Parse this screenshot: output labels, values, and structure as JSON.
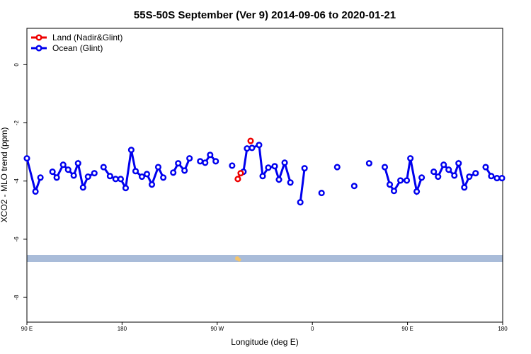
{
  "chart_data": {
    "type": "line",
    "title": "55S-50S September (Ver 9)   2014-09-06 to 2020-01-21",
    "x_label": "Longitude (deg E)",
    "y_label": "XCO2 - MLO trend (ppm)",
    "xlim": [
      90,
      540
    ],
    "xticks": [
      {
        "value": 90,
        "label": "90 E"
      },
      180,
      {
        "value": 270,
        "label": "90 W"
      },
      {
        "value": 360,
        "label": "0"
      },
      {
        "value": 450,
        "label": "90 E"
      },
      {
        "value": 540,
        "label": "180"
      }
    ],
    "ylim": [
      -8.85,
      1.25
    ],
    "yticks": [
      0,
      -2,
      -4,
      -6,
      -8
    ],
    "legend": "top-left",
    "series": [
      {
        "name": "Land (Nadir&Glint)",
        "color": "#ee0000",
        "x": [
          289.5,
          292.2,
          null,
          301.6
        ],
        "values": [
          -3.93,
          -3.73,
          null,
          -2.62
        ]
      },
      {
        "name": "Ocean (Glint)",
        "color": "#0000ee",
        "x": [
          90,
          98.1,
          102.8,
          null,
          114.2,
          118.2,
          124.3,
          129.0,
          134.3,
          138.4,
          143.1,
          147.8,
          153.8,
          null,
          162.5,
          168.6,
          173.9,
          178.7,
          183.4,
          188.7,
          192.8,
          198.8,
          203.5,
          208.2,
          214.2,
          219.0,
          null,
          228.4,
          233.1,
          239.1,
          243.8,
          null,
          253.9,
          258.6,
          263.3,
          268.6,
          null,
          284.1,
          null,
          294.8,
          298.2,
          302.9,
          309.6,
          313.0,
          318.3,
          324.4,
          328.4,
          333.8,
          339.2,
          null,
          348.6,
          352.6,
          null,
          368.7,
          null,
          383.5,
          null,
          399.6,
          null,
          413.7,
          null,
          428.5,
          433.2,
          437.2,
          443.3,
          449.3,
          452.7,
          458.7,
          463.4,
          null,
          474.8,
          478.9,
          484.2,
          488.9,
          494.3,
          498.3,
          503.7,
          508.4,
          514.4,
          null,
          523.9,
          529.2,
          534.6,
          539.3
        ],
        "values": [
          -3.22,
          -4.36,
          -3.88,
          null,
          -3.68,
          -3.88,
          -3.44,
          -3.61,
          -3.81,
          -3.39,
          -4.22,
          -3.85,
          -3.73,
          null,
          -3.52,
          -3.83,
          -3.93,
          -3.93,
          -4.24,
          -2.93,
          -3.66,
          -3.85,
          -3.76,
          -4.12,
          -3.52,
          -3.88,
          null,
          -3.71,
          -3.39,
          -3.64,
          -3.22,
          null,
          -3.32,
          -3.37,
          -3.1,
          -3.32,
          null,
          -3.47,
          null,
          -3.68,
          -2.88,
          -2.86,
          -2.76,
          -3.83,
          -3.54,
          -3.49,
          -3.95,
          -3.37,
          -4.05,
          null,
          -4.73,
          -3.56,
          null,
          -4.41,
          null,
          -3.52,
          null,
          -4.17,
          null,
          -3.39,
          null,
          -3.52,
          -4.12,
          -4.34,
          -3.98,
          -3.98,
          -3.22,
          -4.36,
          -3.88,
          null,
          -3.68,
          -3.85,
          -3.44,
          -3.61,
          -3.81,
          -3.39,
          -4.22,
          -3.85,
          -3.73,
          null,
          -3.52,
          -3.83,
          -3.9,
          -3.9
        ]
      }
    ]
  }
}
